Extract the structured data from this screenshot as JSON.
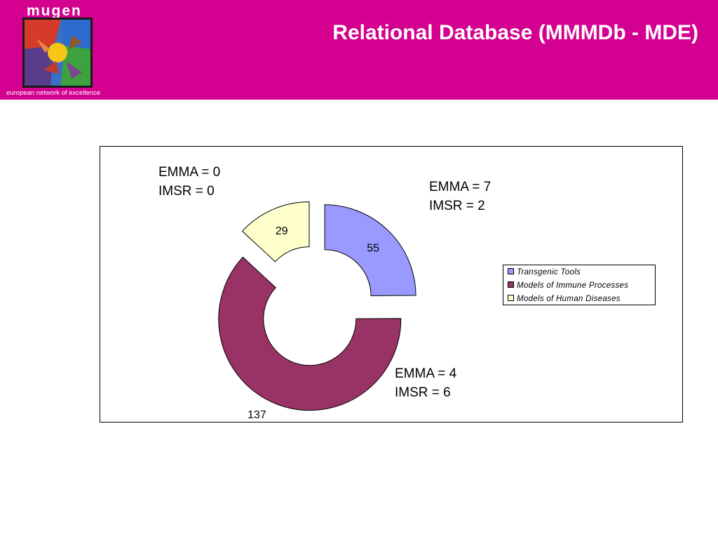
{
  "header": {
    "logo_text": "mugen",
    "tagline": "european network of excellence",
    "title": "Relational Database (MMMDb - MDE)",
    "background_color": "#d4008f"
  },
  "chart_data": {
    "type": "pie",
    "style": "exploded doughnut",
    "categories": [
      "Transgenic Tools",
      "Models of Immune Processes",
      "Models of Human Diseases"
    ],
    "values": [
      55,
      137,
      29
    ],
    "colors": [
      "#9999ff",
      "#993366",
      "#ffffcc"
    ],
    "value_labels": [
      "55",
      "137",
      "29"
    ],
    "legend_position": "right",
    "annotations": [
      {
        "category": "Models of Human Diseases",
        "lines": [
          "EMMA = 0",
          "IMSR = 0"
        ]
      },
      {
        "category": "Transgenic Tools",
        "lines": [
          "EMMA = 7",
          "IMSR = 2"
        ]
      },
      {
        "category": "Models of Immune Processes",
        "lines": [
          "EMMA = 4",
          "IMSR = 6"
        ]
      }
    ]
  }
}
